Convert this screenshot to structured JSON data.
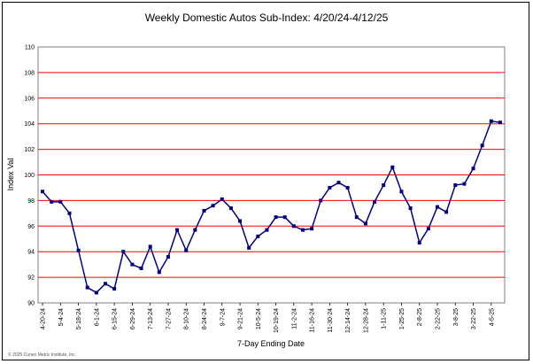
{
  "copyright": "© 2025 Cuneo Metric Institute, Inc.",
  "chart_data": {
    "type": "line",
    "title": "Weekly Domestic Autos Sub-Index: 4/20/24-4/12/25",
    "xlabel": "7-Day Ending Date",
    "ylabel": "Index Val",
    "ylim": [
      90,
      110
    ],
    "yticks": [
      90,
      92,
      94,
      96,
      98,
      100,
      102,
      104,
      106,
      108,
      110
    ],
    "grid": true,
    "legend": "none",
    "colors": {
      "line": "#000080",
      "marker": "#000080",
      "grid": "#ff0000",
      "plot_border": "#808080"
    },
    "x": [
      "4-20-24",
      "4-27-24",
      "5-4-24",
      "5-11-24",
      "5-18-24",
      "5-25-24",
      "6-1-24",
      "6-8-24",
      "6-15-24",
      "6-22-24",
      "6-29-24",
      "7-6-24",
      "7-13-24",
      "7-20-24",
      "7-27-24",
      "8-3-24",
      "8-10-24",
      "8-17-24",
      "8-24-24",
      "8-31-24",
      "9-7-24",
      "9-14-24",
      "9-21-24",
      "9-28-24",
      "10-5-24",
      "10-12-24",
      "10-19-24",
      "10-26-24",
      "11-2-24",
      "11-9-24",
      "11-16-24",
      "11-23-24",
      "11-30-24",
      "12-7-24",
      "12-14-24",
      "12-21-24",
      "12-28-24",
      "1-4-25",
      "1-11-25",
      "1-18-25",
      "1-25-25",
      "2-1-25",
      "2-8-25",
      "2-15-25",
      "2-22-25",
      "3-1-25",
      "3-8-25",
      "3-15-25",
      "3-22-25",
      "3-29-25",
      "4-5-25",
      "4-12-25"
    ],
    "x_tick_labels": [
      "4-20-24",
      "5-4-24",
      "5-18-24",
      "6-1-24",
      "6-15-24",
      "6-29-24",
      "7-13-24",
      "7-27-24",
      "8-10-24",
      "8-24-24",
      "9-7-24",
      "9-21-24",
      "10-5-24",
      "10-19-24",
      "11-2-24",
      "11-16-24",
      "11-30-24",
      "12-14-24",
      "12-28-24",
      "1-11-25",
      "1-25-25",
      "2-8-25",
      "2-22-25",
      "3-8-25",
      "3-22-25",
      "4-5-25"
    ],
    "series": [
      {
        "values": [
          98.7,
          97.9,
          97.9,
          97.0,
          94.1,
          91.2,
          90.8,
          91.5,
          91.1,
          94.0,
          93.0,
          92.7,
          94.4,
          92.4,
          93.6,
          95.7,
          94.1,
          95.7,
          97.2,
          97.6,
          98.1,
          97.4,
          96.4,
          94.3,
          95.2,
          95.7,
          96.7,
          96.7,
          96.0,
          95.7,
          95.8,
          98.0,
          99.0,
          99.4,
          99.0,
          96.7,
          96.2,
          97.9,
          99.2,
          100.6,
          98.7,
          97.4,
          94.7,
          95.8,
          97.5,
          97.1,
          99.2,
          99.3,
          100.5,
          102.3,
          104.2,
          104.1
        ]
      }
    ]
  }
}
